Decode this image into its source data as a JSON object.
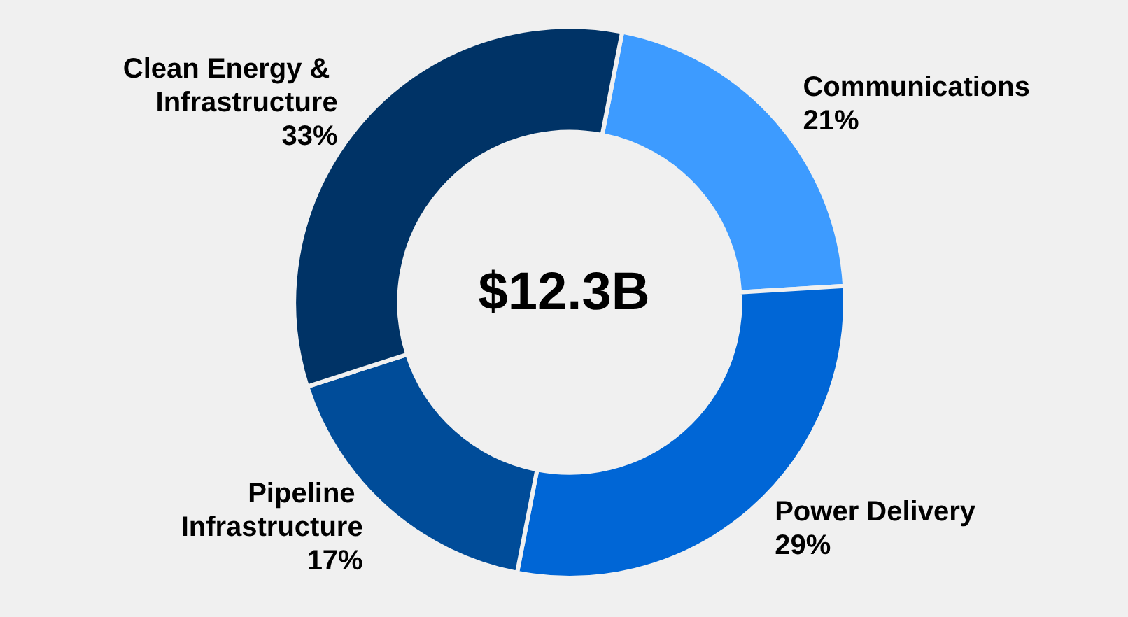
{
  "chart_data": {
    "type": "donut",
    "categories": [
      "Communications",
      "Power Delivery",
      "Pipeline Infrastructure",
      "Clean Energy & Infrastructure"
    ],
    "values": [
      21,
      29,
      17,
      33
    ],
    "value_labels": [
      "21%",
      "29%",
      "17%",
      "33%"
    ],
    "colors": [
      "#3d9bff",
      "#0066d6",
      "#004c99",
      "#003366"
    ],
    "annotations": [
      "$12.3B"
    ],
    "legend": false
  }
}
